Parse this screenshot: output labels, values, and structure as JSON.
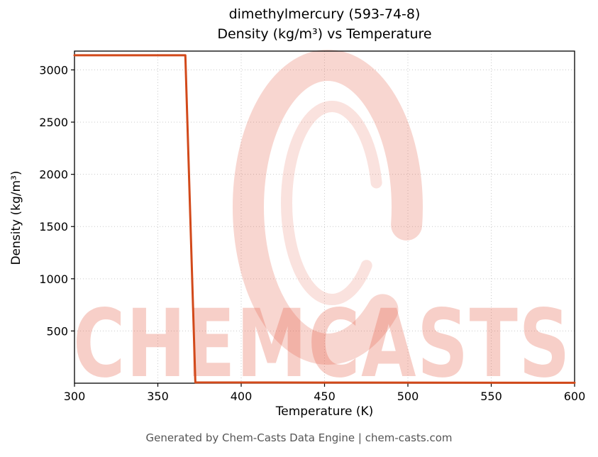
{
  "title_line1": "dimethylmercury (593-74-8)",
  "title_line2": "Density (kg/m³) vs Temperature",
  "footer": "Generated by Chem-Casts Data Engine | chem-casts.com",
  "watermark": {
    "text": "CHEMCASTS",
    "color": "#e4604a"
  },
  "chart_data": {
    "type": "line",
    "title": "dimethylmercury (593-74-8) — Density (kg/m³) vs Temperature",
    "xlabel": "Temperature (K)",
    "ylabel": "Density (kg/m³)",
    "xlim": [
      300,
      600
    ],
    "ylim": [
      0,
      3180
    ],
    "xticks": [
      300,
      350,
      400,
      450,
      500,
      550,
      600
    ],
    "yticks": [
      500,
      1000,
      1500,
      2000,
      2500,
      3000
    ],
    "grid": true,
    "legend": false,
    "line_color": "#d2491a",
    "series": [
      {
        "name": "density",
        "points": [
          [
            300,
            3140
          ],
          [
            366.5,
            3140
          ],
          [
            372.5,
            8
          ],
          [
            450,
            6
          ],
          [
            600,
            4
          ]
        ]
      }
    ]
  }
}
